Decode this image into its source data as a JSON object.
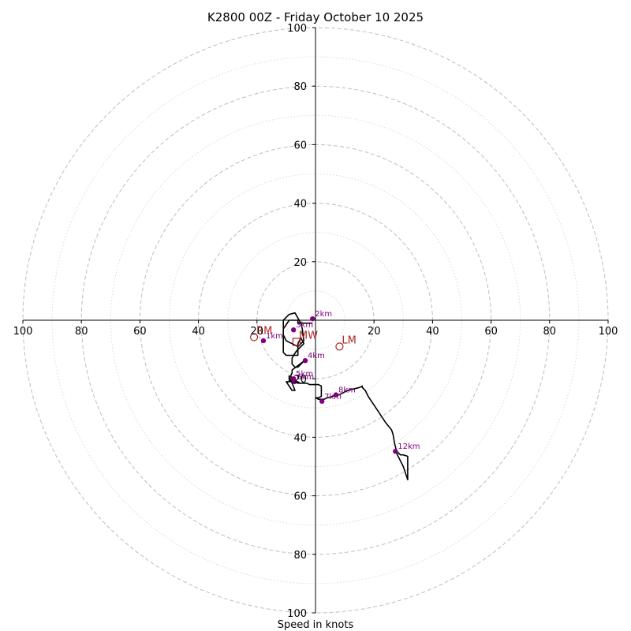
{
  "chart_data": {
    "type": "hodograph",
    "title": "K2800 00Z - Friday October 10 2025",
    "xlabel": "Speed in knots",
    "units": "knots",
    "range": [
      -100,
      100
    ],
    "major_rings": [
      20,
      40,
      60,
      80,
      100
    ],
    "minor_rings": [
      10,
      30,
      50,
      70,
      90
    ],
    "x_tick_labels": [
      "100",
      "80",
      "60",
      "40",
      "20",
      "20",
      "40",
      "60",
      "80",
      "100"
    ],
    "y_tick_labels": [
      "100",
      "80",
      "60",
      "40",
      "20",
      "20",
      "40",
      "60",
      "80",
      "100"
    ],
    "trace": [
      [
        -1,
        -1
      ],
      [
        -6,
        -1
      ],
      [
        -6,
        0
      ],
      [
        -9,
        0
      ],
      [
        -11,
        -3
      ],
      [
        -11,
        -5
      ],
      [
        -10,
        -7
      ],
      [
        -8,
        -8
      ],
      [
        -6,
        -9
      ],
      [
        -4,
        -7
      ],
      [
        -4.5,
        -3
      ],
      [
        -5,
        -1
      ],
      [
        -7,
        2.5
      ],
      [
        -9,
        2
      ],
      [
        -11,
        0
      ],
      [
        -11,
        -1
      ],
      [
        -11,
        -2
      ],
      [
        -11,
        -3
      ],
      [
        -11,
        -5
      ],
      [
        -11,
        -7
      ],
      [
        -11,
        -9
      ],
      [
        -11,
        -11
      ],
      [
        -10,
        -12
      ],
      [
        -8,
        -12
      ],
      [
        -6,
        -12
      ],
      [
        -6,
        -10
      ],
      [
        -6,
        -8
      ],
      [
        -5,
        -6
      ],
      [
        -4,
        -8
      ],
      [
        -6.5,
        -10.5
      ],
      [
        -7.5,
        -12
      ],
      [
        -8,
        -13
      ],
      [
        -8,
        -15
      ],
      [
        -7,
        -16
      ],
      [
        -6,
        -16
      ],
      [
        -4,
        -14
      ],
      [
        -8,
        -17
      ],
      [
        -8,
        -18
      ],
      [
        -8.5,
        -19
      ],
      [
        -8,
        -20
      ],
      [
        -8,
        -21
      ],
      [
        -9,
        -21
      ],
      [
        -7,
        -21
      ],
      [
        -6,
        -21
      ],
      [
        -10,
        -21
      ],
      [
        -8,
        -24
      ],
      [
        -7,
        -24
      ],
      [
        -9,
        -19
      ],
      [
        -9,
        -20.5
      ],
      [
        -6,
        -21.5
      ],
      [
        -5,
        -21.5
      ],
      [
        -4,
        -21.5
      ],
      [
        -3,
        -21.5
      ],
      [
        -2,
        -22
      ],
      [
        0,
        -22
      ],
      [
        1,
        -22
      ],
      [
        2,
        -22.5
      ],
      [
        2,
        -24.5
      ],
      [
        2,
        -26
      ],
      [
        1,
        -26.5
      ],
      [
        0,
        -26.5
      ],
      [
        1,
        -27
      ],
      [
        2,
        -27
      ],
      [
        3,
        -27
      ],
      [
        4,
        -26.5
      ],
      [
        6,
        -26
      ],
      [
        7,
        -25.5
      ],
      [
        8,
        -25.5
      ],
      [
        9,
        -25
      ],
      [
        11,
        -24
      ],
      [
        13,
        -23.5
      ],
      [
        15,
        -23
      ],
      [
        16,
        -22.5
      ],
      [
        16,
        -23
      ],
      [
        17,
        -24
      ],
      [
        18,
        -26
      ],
      [
        20,
        -29
      ],
      [
        22,
        -32
      ],
      [
        24,
        -35
      ],
      [
        26,
        -37.5
      ],
      [
        26.5,
        -39
      ],
      [
        27,
        -42
      ],
      [
        27.5,
        -44
      ],
      [
        28,
        -45
      ],
      [
        29,
        -46
      ],
      [
        30,
        -46
      ],
      [
        31.5,
        -46.5
      ],
      [
        31.5,
        -50
      ],
      [
        31.5,
        -53
      ],
      [
        31.5,
        -54.5
      ],
      [
        31,
        -53
      ],
      [
        30.5,
        -51.5
      ],
      [
        30,
        -50
      ],
      [
        29,
        -48
      ],
      [
        27.5,
        -45
      ],
      [
        27,
        -44.5
      ]
    ],
    "height_markers": [
      {
        "label": "1km",
        "u": -17.8,
        "v": -7.0
      },
      {
        "label": "2km",
        "u": -1.0,
        "v": 0.5
      },
      {
        "label": "3km",
        "u": -7.5,
        "v": -3.3
      },
      {
        "label": "4km",
        "u": -3.5,
        "v": -13.8
      },
      {
        "label": "5km",
        "u": -7.5,
        "v": -20.0
      },
      {
        "label": "6km",
        "u": -7.2,
        "v": -21.0
      },
      {
        "label": "7km",
        "u": 2.2,
        "v": -27.7
      },
      {
        "label": "8km",
        "u": 7.0,
        "v": -25.5
      },
      {
        "label": "12km",
        "u": 27.3,
        "v": -44.8
      }
    ],
    "storm_motion": [
      {
        "label": "RM",
        "u": -21.0,
        "v": -5.8,
        "shape": "circle"
      },
      {
        "label": "LM",
        "u": 8.2,
        "v": -9.0,
        "shape": "circle"
      },
      {
        "label": "MW",
        "u": -6.5,
        "v": -7.4,
        "shape": "square"
      }
    ]
  }
}
